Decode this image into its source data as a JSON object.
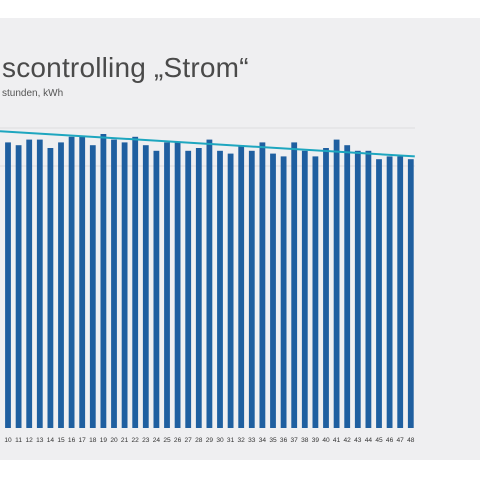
{
  "title": "scontrolling „Strom“",
  "subtitle": "stunden, kWh",
  "colors": {
    "bar": "#1f5fa0",
    "trend": "#1ea6bf",
    "grid": "#d6d6da",
    "background": "#efeff1"
  },
  "chart_data": {
    "type": "bar",
    "title": "scontrolling „Strom“",
    "subtitle": "stunden, kWh",
    "xlabel": "",
    "ylabel": "",
    "grid": true,
    "legend": "none",
    "ylim": [
      0,
      120
    ],
    "categories": [
      "10",
      "11",
      "12",
      "13",
      "14",
      "15",
      "16",
      "17",
      "18",
      "19",
      "20",
      "21",
      "22",
      "23",
      "24",
      "25",
      "26",
      "27",
      "28",
      "29",
      "30",
      "31",
      "32",
      "33",
      "34",
      "35",
      "36",
      "37",
      "38",
      "39",
      "40",
      "41",
      "42",
      "43",
      "44",
      "45",
      "46",
      "47",
      "48"
    ],
    "series": [
      {
        "values": [
          102,
          101,
          103,
          103,
          100,
          102,
          104,
          104,
          101,
          105,
          103,
          102,
          104,
          101,
          99,
          102,
          102,
          99,
          100,
          103,
          99,
          98,
          101,
          99,
          102,
          98,
          97,
          102,
          99,
          97,
          100,
          103,
          101,
          99,
          99,
          96,
          97,
          97,
          96
        ]
      }
    ],
    "trend": {
      "type": "linear",
      "start": 106,
      "end": 97
    }
  }
}
